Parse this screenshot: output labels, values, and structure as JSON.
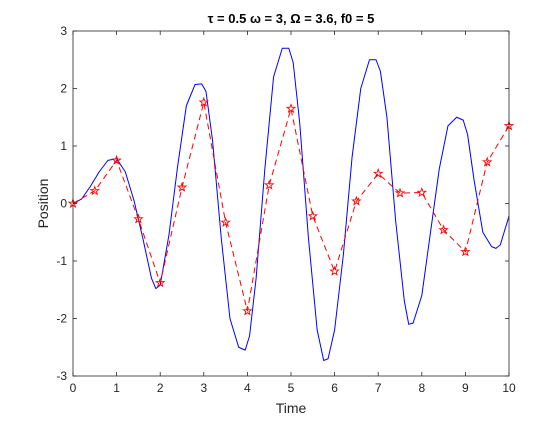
{
  "chart_data": {
    "type": "line",
    "title": "τ = 0.5  ω = 3,  Ω = 3.6,  f0 = 5",
    "xlabel": "Time",
    "ylabel": "Position",
    "xlim": [
      0,
      10
    ],
    "ylim": [
      -3,
      3
    ],
    "xticks": [
      0,
      1,
      2,
      3,
      4,
      5,
      6,
      7,
      8,
      9,
      10
    ],
    "xtick_labels": [
      "0",
      "1",
      "2",
      "3",
      "4",
      "5",
      "6",
      "7",
      "8",
      "9",
      "10"
    ],
    "yticks": [
      -3,
      -2,
      -1,
      0,
      1,
      2,
      3
    ],
    "ytick_labels": [
      "-3",
      "-2",
      "-1",
      "0",
      "1",
      "2",
      "3"
    ],
    "grid": false,
    "legend": "none",
    "series": [
      {
        "style": "solid",
        "color": "#0000ff",
        "x": [
          0,
          0.2,
          0.4,
          0.6,
          0.8,
          1.0,
          1.2,
          1.4,
          1.6,
          1.8,
          1.9,
          2.0,
          2.2,
          2.4,
          2.6,
          2.8,
          2.95,
          3.05,
          3.2,
          3.4,
          3.6,
          3.8,
          3.95,
          4.05,
          4.2,
          4.4,
          4.6,
          4.8,
          4.95,
          5.05,
          5.2,
          5.4,
          5.6,
          5.75,
          5.85,
          6.0,
          6.2,
          6.4,
          6.6,
          6.8,
          6.95,
          7.05,
          7.2,
          7.4,
          7.6,
          7.7,
          7.8,
          8.0,
          8.2,
          8.4,
          8.6,
          8.8,
          8.95,
          9.05,
          9.2,
          9.4,
          9.6,
          9.7,
          9.8,
          10.0
        ],
        "y": [
          0,
          0.08,
          0.3,
          0.55,
          0.75,
          0.78,
          0.55,
          0.05,
          -0.6,
          -1.3,
          -1.48,
          -1.42,
          -0.55,
          0.65,
          1.7,
          2.07,
          2.08,
          1.95,
          1.1,
          -0.6,
          -2.0,
          -2.5,
          -2.55,
          -2.3,
          -1.3,
          0.6,
          2.2,
          2.7,
          2.7,
          2.45,
          1.4,
          -0.6,
          -2.2,
          -2.73,
          -2.7,
          -2.2,
          -0.9,
          0.8,
          2.0,
          2.5,
          2.5,
          2.3,
          1.5,
          -0.3,
          -1.7,
          -2.1,
          -2.08,
          -1.6,
          -0.5,
          0.6,
          1.35,
          1.5,
          1.45,
          1.2,
          0.4,
          -0.5,
          -0.75,
          -0.78,
          -0.72,
          -0.22
        ]
      },
      {
        "style": "dashed",
        "color": "#ff0000",
        "marker": "pentagram",
        "x": [
          0,
          0.5,
          1.0,
          1.5,
          2.0,
          2.5,
          3.0,
          3.5,
          4.0,
          4.5,
          5.0,
          5.5,
          6.0,
          6.5,
          7.0,
          7.5,
          8.0,
          8.5,
          9.0,
          9.5,
          10.0
        ],
        "y": [
          0,
          0.22,
          0.75,
          -0.27,
          -1.38,
          0.28,
          1.76,
          -0.33,
          -1.87,
          0.32,
          1.65,
          -0.22,
          -1.18,
          0.04,
          0.52,
          0.18,
          0.19,
          -0.46,
          -0.84,
          0.72,
          1.35
        ]
      }
    ]
  }
}
